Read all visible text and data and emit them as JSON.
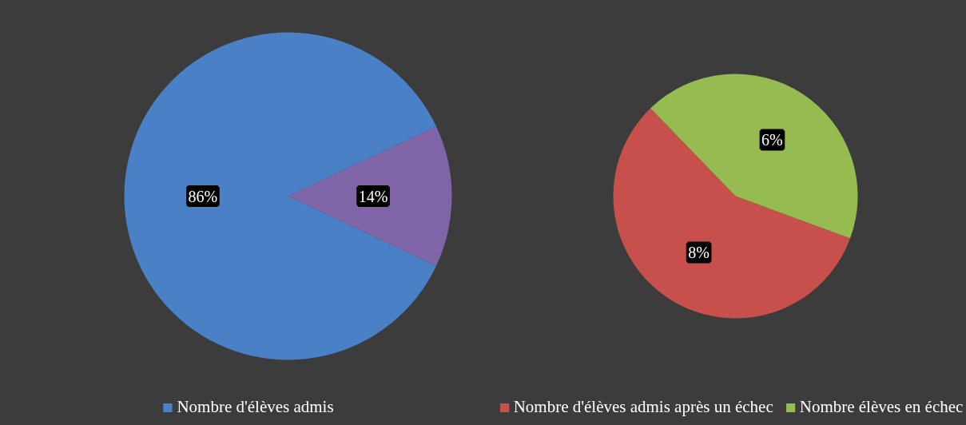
{
  "chart_data": [
    {
      "type": "pie",
      "categories": [
        "Nombre d'élèves admis",
        null
      ],
      "values": [
        86,
        14
      ],
      "colors": [
        "#4a80c6",
        "#8064a8"
      ],
      "value_labels": [
        "86%",
        "14%"
      ],
      "legend": "bottom"
    },
    {
      "type": "pie",
      "categories": [
        "Nombre d'élèves admis après un échec",
        "Nombre élèves en échec"
      ],
      "values": [
        8,
        6
      ],
      "colors": [
        "#c8504c",
        "#96bb50"
      ],
      "value_labels": [
        "8%",
        "6%"
      ],
      "legend": "bottom"
    }
  ]
}
